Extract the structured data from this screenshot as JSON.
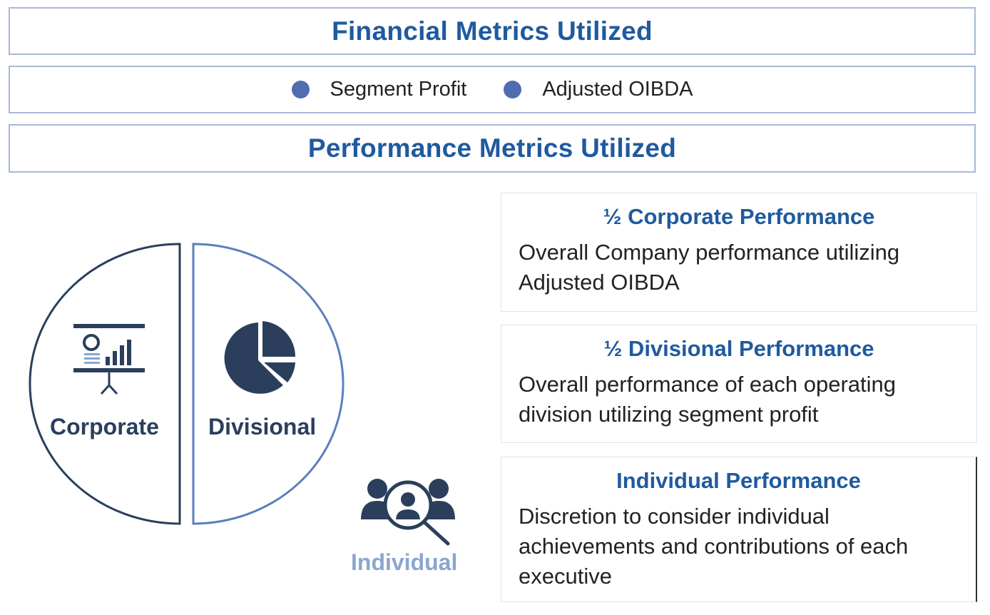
{
  "financial": {
    "title": "Financial Metrics Utilized",
    "items": [
      "Segment Profit",
      "Adjusted OIBDA"
    ]
  },
  "performance": {
    "title": "Performance Metrics Utilized"
  },
  "diagram": {
    "corporate_label": "Corporate",
    "divisional_label": "Divisional",
    "individual_label": "Individual"
  },
  "cards": [
    {
      "title": "½ Corporate Performance",
      "body": "Overall Company performance utilizing Adjusted OIBDA"
    },
    {
      "title": "½ Divisional Performance",
      "body": "Overall performance of each operating division utilizing segment profit"
    },
    {
      "title": "Individual Performance",
      "body": "Discretion to consider individual achievements and contributions of each executive"
    }
  ],
  "icons": [
    "presentation-chart-icon",
    "pie-chart-icon",
    "people-search-icon"
  ],
  "colors": {
    "accent_blue": "#1f5a9e",
    "dot_blue": "#4f6db0",
    "navy": "#2b3f5c",
    "light_blue": "#8aa6cf"
  }
}
